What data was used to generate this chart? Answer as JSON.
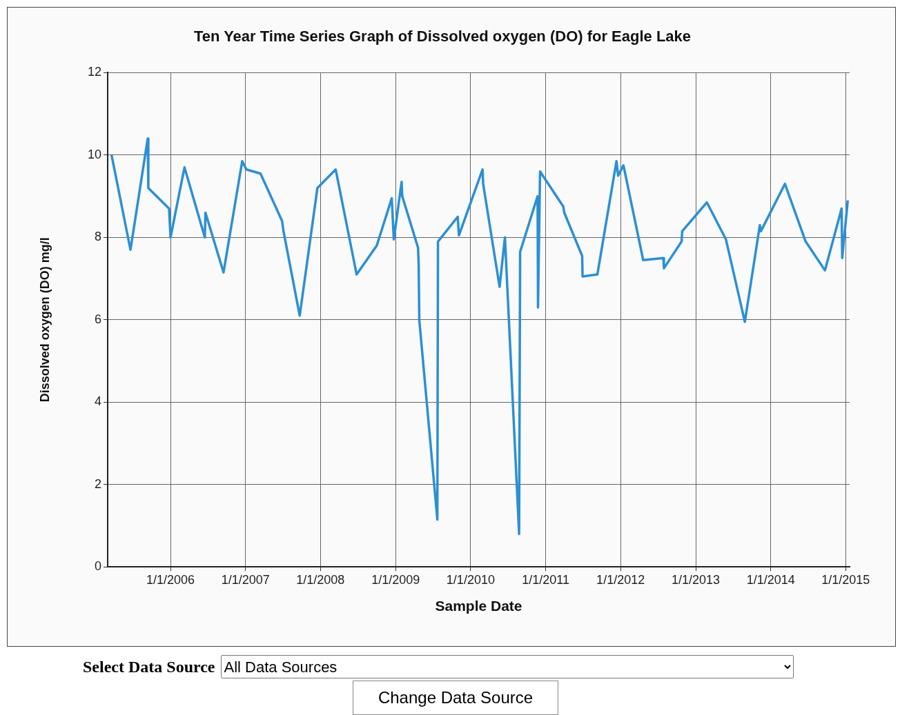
{
  "chart_data": {
    "type": "line",
    "title": "Ten Year Time Series Graph of Dissolved oxygen (DO) for Eagle Lake",
    "xlabel": "Sample Date",
    "ylabel": "Dissolved oxygen (DO) mg/l",
    "x": [
      "2005-03-20",
      "2005-06-20",
      "2005-09-12",
      "2005-09-15",
      "2005-12-25",
      "2006-01-01",
      "2006-03-10",
      "2006-06-17",
      "2006-06-20",
      "2006-09-16",
      "2006-12-16",
      "2007-01-05",
      "2007-03-15",
      "2007-06-28",
      "2007-07-05",
      "2007-09-22",
      "2007-12-17",
      "2008-03-15",
      "2008-06-25",
      "2008-10-01",
      "2008-12-13",
      "2008-12-23",
      "2009-01-30",
      "2009-02-02",
      "2009-04-20",
      "2009-04-23",
      "2009-04-26",
      "2009-07-23",
      "2009-07-26",
      "2009-10-30",
      "2009-11-05",
      "2010-02-28",
      "2010-03-03",
      "2010-05-22",
      "2010-06-17",
      "2010-08-25",
      "2010-08-30",
      "2010-11-23",
      "2010-11-25",
      "2010-12-05",
      "2011-03-28",
      "2011-04-02",
      "2011-06-28",
      "2011-06-30",
      "2011-09-10",
      "2011-12-12",
      "2011-12-20",
      "2012-01-15",
      "2012-04-20",
      "2012-07-27",
      "2012-07-30",
      "2012-10-24",
      "2012-10-27",
      "2013-02-24",
      "2013-05-28",
      "2013-08-28",
      "2013-11-09",
      "2013-11-14",
      "2014-03-11",
      "2014-06-20",
      "2014-09-22",
      "2014-12-12",
      "2014-12-15",
      "2015-01-11"
    ],
    "series": [
      {
        "color": "#2b8fd6",
        "values": [
          10.0,
          7.7,
          10.4,
          9.2,
          8.7,
          8.0,
          9.7,
          8.0,
          8.6,
          7.15,
          9.85,
          9.65,
          9.55,
          8.4,
          8.15,
          6.1,
          9.2,
          9.65,
          7.1,
          7.8,
          8.95,
          7.95,
          9.35,
          9.0,
          7.75,
          7.35,
          6.0,
          1.15,
          7.9,
          8.5,
          8.05,
          9.65,
          9.3,
          6.8,
          8.0,
          0.8,
          7.65,
          9.0,
          6.3,
          9.6,
          8.75,
          8.6,
          7.55,
          7.05,
          7.1,
          9.85,
          9.5,
          9.75,
          7.45,
          7.5,
          7.25,
          7.9,
          8.15,
          8.85,
          7.95,
          5.95,
          8.3,
          8.15,
          9.3,
          7.9,
          7.2,
          8.7,
          7.5,
          8.9
        ]
      }
    ],
    "xlim": [
      "2005-03-01",
      "2015-01-20"
    ],
    "xticks": [
      {
        "value": "2006-01-01",
        "label": "1/1/2006"
      },
      {
        "value": "2007-01-01",
        "label": "1/1/2007"
      },
      {
        "value": "2008-01-01",
        "label": "1/1/2008"
      },
      {
        "value": "2009-01-01",
        "label": "1/1/2009"
      },
      {
        "value": "2010-01-01",
        "label": "1/1/2010"
      },
      {
        "value": "2011-01-01",
        "label": "1/1/2011"
      },
      {
        "value": "2012-01-01",
        "label": "1/1/2012"
      },
      {
        "value": "2013-01-01",
        "label": "1/1/2013"
      },
      {
        "value": "2014-01-01",
        "label": "1/1/2014"
      },
      {
        "value": "2015-01-01",
        "label": "1/1/2015"
      }
    ],
    "ylim": [
      0,
      12
    ],
    "yticks": [
      0,
      2,
      4,
      6,
      8,
      10,
      12
    ],
    "grid": true,
    "legend": false,
    "marker": "none",
    "line_style": "solid",
    "annotations": [
      "Select Data Source",
      "All Data Sources",
      "Change Data Source"
    ]
  }
}
